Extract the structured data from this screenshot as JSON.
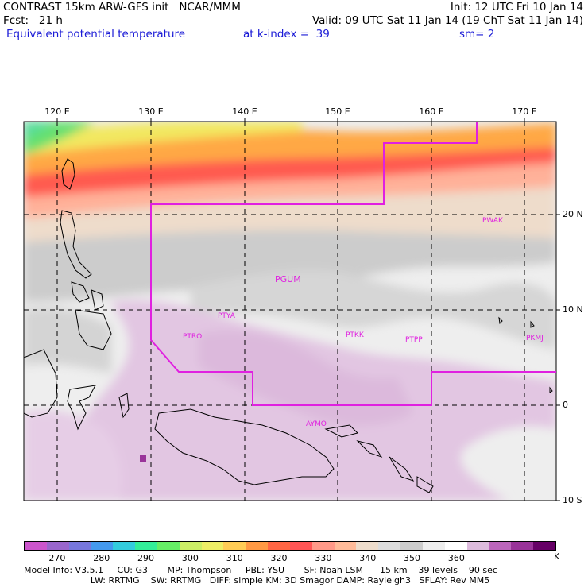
{
  "header": {
    "line1_left": "CONTRAST 15km ARW-GFS init   NCAR/MMM",
    "line1_right": "Init: 12 UTC Fri 10 Jan 14",
    "line2_left": "Fcst:   21 h",
    "line2_right": "Valid: 09 UTC Sat 11 Jan 14 (19 ChT Sat 11 Jan 14)",
    "line3_field": "Equivalent potential temperature",
    "line3_level": "at k-index =  39",
    "line3_sm": "sm= 2"
  },
  "map": {
    "lon_labels": [
      "120 E",
      "130 E",
      "140 E",
      "150 E",
      "160 E",
      "170 E"
    ],
    "lat_labels": [
      "20 N",
      "10 N",
      "0",
      "10 S"
    ],
    "stations": [
      "PWAK",
      "PGUM",
      "PTYA",
      "PTRO",
      "PTKK",
      "PTPP",
      "PKMJ",
      "AYMO"
    ],
    "boundary_color": "#e020e0",
    "station_color": "#e020e0"
  },
  "colorbar": {
    "colors": [
      "#cc55cc",
      "#9966cc",
      "#7777dd",
      "#4499ee",
      "#33ccdd",
      "#33ee99",
      "#66ee66",
      "#ccee66",
      "#eeee66",
      "#ffcc55",
      "#ff9944",
      "#ff6644",
      "#ff5555",
      "#ff9988",
      "#ffbb99",
      "#eeddcc",
      "#dddddd",
      "#cccccc",
      "#eeeeee",
      "#ffffff",
      "#ddbbdd",
      "#bb66bb",
      "#993399",
      "#660066"
    ],
    "labels": [
      "270",
      "280",
      "290",
      "300",
      "310",
      "320",
      "330",
      "340",
      "350",
      "360"
    ],
    "unit": "K"
  },
  "model_info": {
    "line1": "Model Info: V3.5.1     CU: G3       MP: Thompson     PBL: YSU       SF: Noah LSM      15 km    39 levels    90 sec",
    "line2": "                        LW: RRTMG    SW: RRTMG   DIFF: simple KM: 3D Smagor DAMP: Rayleigh3   SFLAY: Rev MM5"
  }
}
